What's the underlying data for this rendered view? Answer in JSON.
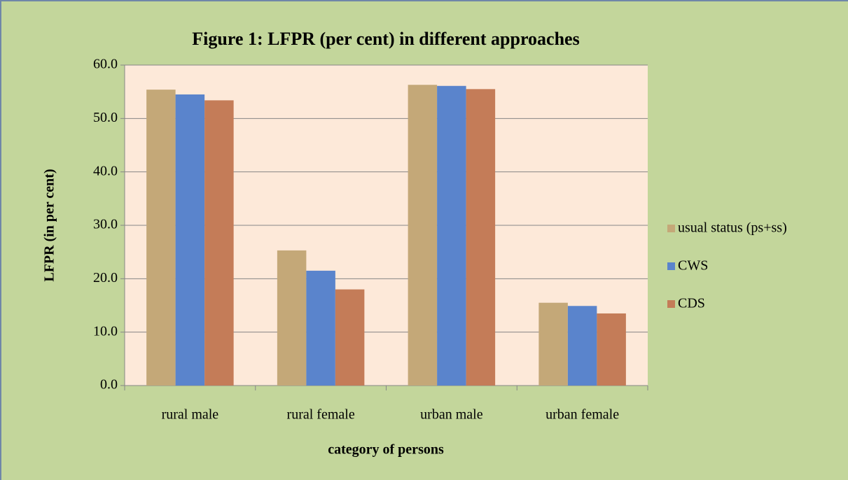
{
  "chart_data": {
    "type": "bar",
    "title": "Figure 1: LFPR (per cent) in different approaches",
    "x_label": "category of persons",
    "y_label": "LFPR (in per cent)",
    "categories": [
      "rural male",
      "rural female",
      "urban male",
      "urban female"
    ],
    "series": [
      {
        "name": "usual status (ps+ss)",
        "color": "#c4a878",
        "values": [
          55.4,
          25.3,
          56.3,
          15.5
        ]
      },
      {
        "name": "CWS",
        "color": "#5a84cc",
        "values": [
          54.5,
          21.5,
          56.1,
          14.9
        ]
      },
      {
        "name": "CDS",
        "color": "#c47c58",
        "values": [
          53.4,
          18.0,
          55.5,
          13.5
        ]
      }
    ],
    "ylim": [
      0,
      60
    ],
    "yticks": [
      {
        "value": 0,
        "label": "0.0"
      },
      {
        "value": 10,
        "label": "10.0"
      },
      {
        "value": 20,
        "label": "20.0"
      },
      {
        "value": 30,
        "label": "30.0"
      },
      {
        "value": 40,
        "label": "40.0"
      },
      {
        "value": 50,
        "label": "50.0"
      },
      {
        "value": 60,
        "label": "60.0"
      }
    ],
    "grid": true,
    "legend": "right"
  }
}
